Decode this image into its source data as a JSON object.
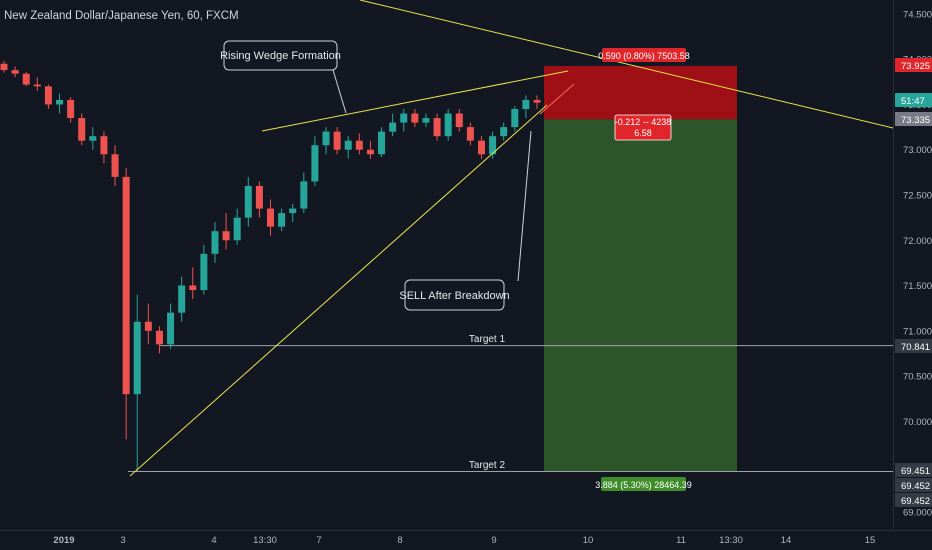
{
  "header": {
    "title": "New Zealand Dollar/Japanese Yen, 60, FXCM"
  },
  "chart_data": {
    "type": "candlestick",
    "title": "New Zealand Dollar/Japanese Yen, 60, FXCM",
    "symbol": "NZDJPY",
    "interval": "60",
    "source": "FXCM",
    "y_ticks": [
      "74.500",
      "74.000",
      "73.500",
      "73.000",
      "72.500",
      "72.000",
      "71.500",
      "71.000",
      "70.500",
      "70.000",
      "69.500",
      "69.000"
    ],
    "ylim": [
      68.87,
      74.67
    ],
    "x_ticks": [
      "2019",
      "3",
      "4",
      "13:30",
      "7",
      "8",
      "9",
      "10",
      "11",
      "13:30",
      "14",
      "15"
    ],
    "grid": false,
    "candles_approx": [
      [
        73.95,
        73.98,
        73.85,
        73.88
      ],
      [
        73.88,
        73.92,
        73.8,
        73.84
      ],
      [
        73.84,
        73.86,
        73.7,
        73.72
      ],
      [
        73.72,
        73.8,
        73.65,
        73.7
      ],
      [
        73.7,
        73.72,
        73.45,
        73.5
      ],
      [
        73.5,
        73.62,
        73.4,
        73.55
      ],
      [
        73.55,
        73.58,
        73.3,
        73.35
      ],
      [
        73.35,
        73.4,
        73.05,
        73.1
      ],
      [
        73.1,
        73.25,
        73.0,
        73.15
      ],
      [
        73.15,
        73.2,
        72.85,
        72.95
      ],
      [
        72.95,
        73.05,
        72.6,
        72.7
      ],
      [
        72.7,
        72.8,
        69.8,
        70.3
      ],
      [
        70.3,
        71.4,
        69.45,
        71.1
      ],
      [
        71.1,
        71.3,
        70.85,
        71.0
      ],
      [
        71.0,
        71.05,
        70.75,
        70.85
      ],
      [
        70.85,
        71.3,
        70.8,
        71.2
      ],
      [
        71.2,
        71.6,
        71.1,
        71.5
      ],
      [
        71.5,
        71.7,
        71.35,
        71.45
      ],
      [
        71.45,
        71.95,
        71.4,
        71.85
      ],
      [
        71.85,
        72.2,
        71.75,
        72.1
      ],
      [
        72.1,
        72.3,
        71.9,
        72.0
      ],
      [
        72.0,
        72.35,
        71.95,
        72.25
      ],
      [
        72.25,
        72.7,
        72.15,
        72.6
      ],
      [
        72.6,
        72.65,
        72.25,
        72.35
      ],
      [
        72.35,
        72.45,
        72.05,
        72.15
      ],
      [
        72.15,
        72.35,
        72.1,
        72.3
      ],
      [
        72.3,
        72.4,
        72.2,
        72.35
      ],
      [
        72.35,
        72.75,
        72.3,
        72.65
      ],
      [
        72.65,
        73.15,
        72.6,
        73.05
      ],
      [
        73.05,
        73.25,
        72.95,
        73.2
      ],
      [
        73.2,
        73.25,
        72.95,
        73.0
      ],
      [
        73.0,
        73.15,
        72.9,
        73.1
      ],
      [
        73.1,
        73.18,
        72.95,
        73.0
      ],
      [
        73.0,
        73.1,
        72.9,
        72.95
      ],
      [
        72.95,
        73.25,
        72.92,
        73.2
      ],
      [
        73.2,
        73.4,
        73.15,
        73.3
      ],
      [
        73.3,
        73.45,
        73.2,
        73.4
      ],
      [
        73.4,
        73.45,
        73.25,
        73.3
      ],
      [
        73.3,
        73.4,
        73.25,
        73.35
      ],
      [
        73.35,
        73.4,
        73.1,
        73.15
      ],
      [
        73.15,
        73.45,
        73.1,
        73.4
      ],
      [
        73.4,
        73.45,
        73.2,
        73.25
      ],
      [
        73.25,
        73.3,
        73.05,
        73.1
      ],
      [
        73.1,
        73.15,
        72.9,
        72.95
      ],
      [
        72.95,
        73.2,
        72.9,
        73.15
      ],
      [
        73.15,
        73.3,
        73.1,
        73.25
      ],
      [
        73.25,
        73.48,
        73.2,
        73.45
      ],
      [
        73.45,
        73.6,
        73.35,
        73.55
      ],
      [
        73.55,
        73.6,
        73.45,
        73.52
      ]
    ],
    "position": {
      "side": "short",
      "entry": 73.335,
      "stop": 73.925,
      "target": 69.451,
      "stop_label": "0.590 (0.80%) 7503.58",
      "open_label_line1": "-0.212 -- 4238",
      "open_label_line2": "6.58",
      "target_label": "3.884 (5.30%) 28464.39"
    },
    "levels": [
      {
        "name": "Target 1",
        "price": 70.841
      },
      {
        "name": "Target 2",
        "price": 69.451
      }
    ],
    "annotations": [
      {
        "name": "wedge",
        "text": "Rising Wedge Formation"
      },
      {
        "name": "sell",
        "text": "SELL After Breakdown"
      }
    ],
    "price_labels": {
      "stop": "73.925",
      "last": "51:47",
      "entry": "73.335",
      "target1": "70.841",
      "target2": "69.451",
      "extra1": "69.452",
      "extra2": "69.452"
    },
    "colors": {
      "background": "#131722",
      "up": "#26a69a",
      "down": "#ef5350",
      "stop_zone": "#b20f14",
      "target_zone": "#2f5c2a",
      "trendline": "#e8e54a",
      "level_line": "#9ea2ab"
    }
  }
}
